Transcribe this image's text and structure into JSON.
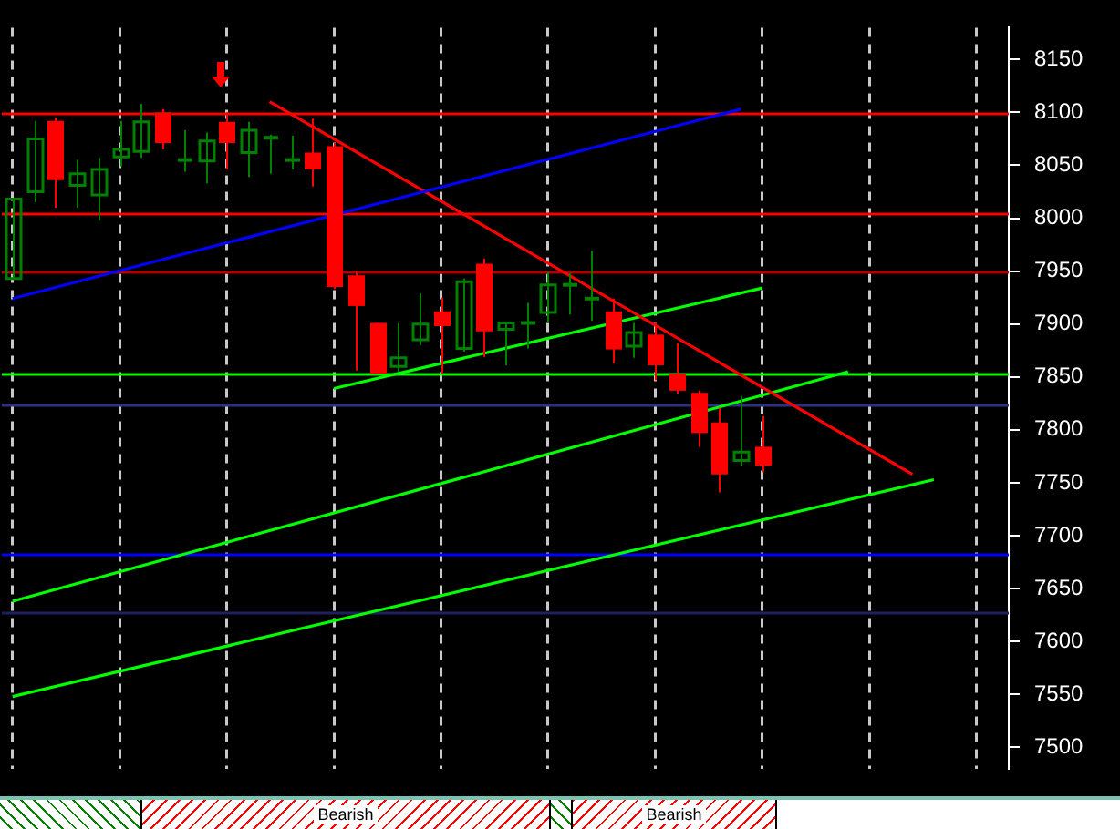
{
  "chart_data": {
    "type": "candlestick",
    "categories": [
      null,
      null,
      null,
      null,
      null,
      null,
      null,
      null,
      null,
      null,
      null,
      null,
      null,
      null,
      null,
      null,
      null,
      null,
      null,
      null,
      null,
      null,
      null,
      null,
      null,
      null,
      null,
      null,
      null,
      null,
      null,
      null,
      null,
      null,
      null,
      null,
      null,
      null,
      null,
      null,
      null,
      null,
      null,
      null,
      null,
      null,
      null
    ],
    "ohlc": [
      [
        7943,
        8018,
        7943,
        8018
      ],
      [
        8025,
        8092,
        8015,
        8075
      ],
      [
        8092,
        8095,
        8010,
        8036
      ],
      [
        8031,
        8055,
        8010,
        8042
      ],
      [
        8022,
        8057,
        7998,
        8046
      ],
      [
        8058,
        8092,
        8049,
        8065
      ],
      [
        8063,
        8108,
        8057,
        8091
      ],
      [
        8100,
        8103,
        8065,
        8071
      ],
      [
        8055,
        8083,
        8044,
        8055
      ],
      [
        8054,
        8081,
        8033,
        8073
      ],
      [
        8091,
        8100,
        8046,
        8071
      ],
      [
        8062,
        8091,
        8039,
        8083
      ],
      [
        8076,
        8079,
        8042,
        8076
      ],
      [
        8055,
        8078,
        8046,
        8055
      ],
      [
        8062,
        8094,
        8030,
        8046
      ],
      [
        8068,
        8071,
        7933,
        7935
      ],
      [
        7946,
        7949,
        7856,
        7917
      ],
      [
        7901,
        7901,
        7853,
        7853
      ],
      [
        7860,
        7901,
        7855,
        7868
      ],
      [
        7885,
        7929,
        7880,
        7900
      ],
      [
        7912,
        7925,
        7853,
        7898
      ],
      [
        7877,
        7943,
        7874,
        7940
      ],
      [
        7957,
        7962,
        7869,
        7893
      ],
      [
        7895,
        7901,
        7861,
        7901
      ],
      [
        7901,
        7920,
        7877,
        7901
      ],
      [
        7911,
        7949,
        7901,
        7937
      ],
      [
        7937,
        7948,
        7909,
        7937
      ],
      [
        7924,
        7969,
        7903,
        7924
      ],
      [
        7912,
        7924,
        7863,
        7876
      ],
      [
        7879,
        7901,
        7868,
        7892
      ],
      [
        7890,
        7901,
        7847,
        7861
      ],
      [
        7853,
        7882,
        7834,
        7837
      ],
      [
        7835,
        7837,
        7784,
        7797
      ],
      [
        7807,
        7821,
        7741,
        7758
      ],
      [
        7771,
        7832,
        7766,
        7779
      ],
      [
        7784,
        7813,
        7760,
        7766
      ],
      null,
      null,
      null,
      null,
      null,
      null,
      null,
      null,
      null,
      null,
      null
    ],
    "series": [
      {
        "type": "line",
        "values": [
          7924,
          null,
          null,
          null,
          null,
          null,
          null,
          null,
          null,
          null,
          null,
          null,
          null,
          null,
          null,
          null,
          null,
          null,
          null,
          null,
          null,
          null,
          null,
          null,
          null,
          null,
          null,
          null,
          null,
          null,
          null,
          null,
          null,
          null,
          8103,
          null,
          null,
          null,
          null,
          null,
          null,
          null,
          null,
          null,
          null,
          null,
          null
        ],
        "color": "#0000ff"
      },
      {
        "type": "line",
        "values": [
          null,
          null,
          null,
          null,
          null,
          null,
          null,
          null,
          null,
          null,
          null,
          null,
          8110,
          null,
          null,
          null,
          null,
          null,
          null,
          null,
          null,
          null,
          null,
          null,
          null,
          null,
          null,
          null,
          null,
          null,
          null,
          null,
          null,
          null,
          null,
          null,
          null,
          null,
          null,
          null,
          null,
          null,
          7758,
          null,
          null,
          null,
          null
        ],
        "color": "#ff0000"
      },
      {
        "type": "line",
        "values": [
          null,
          null,
          null,
          null,
          null,
          null,
          null,
          null,
          null,
          null,
          null,
          null,
          null,
          null,
          null,
          7839,
          null,
          null,
          null,
          null,
          null,
          null,
          null,
          null,
          null,
          null,
          null,
          null,
          null,
          null,
          null,
          null,
          null,
          null,
          null,
          7934,
          null,
          null,
          null,
          null,
          null,
          null,
          null,
          null,
          null,
          null,
          null
        ],
        "color": "#00ff00"
      },
      {
        "type": "line",
        "values": [
          7638,
          null,
          null,
          null,
          null,
          null,
          null,
          null,
          null,
          null,
          null,
          null,
          null,
          null,
          null,
          null,
          null,
          null,
          null,
          null,
          null,
          null,
          null,
          null,
          null,
          null,
          null,
          null,
          null,
          null,
          null,
          null,
          null,
          null,
          null,
          null,
          null,
          null,
          null,
          7855,
          null,
          null,
          null,
          null,
          null,
          null,
          null
        ],
        "color": "#00ff00"
      },
      {
        "type": "line",
        "values": [
          7548,
          null,
          null,
          null,
          null,
          null,
          null,
          null,
          null,
          null,
          null,
          null,
          null,
          null,
          null,
          null,
          null,
          null,
          null,
          null,
          null,
          null,
          null,
          null,
          null,
          null,
          null,
          null,
          null,
          null,
          null,
          null,
          null,
          null,
          null,
          null,
          null,
          null,
          null,
          null,
          null,
          null,
          null,
          7753,
          null,
          null,
          null
        ],
        "color": "#00ff00"
      }
    ],
    "ref_lines": [
      {
        "axis": "y",
        "value": 8100,
        "color": "#ff0000"
      },
      {
        "axis": "y",
        "value": 8005,
        "color": "#ff0000"
      },
      {
        "axis": "y",
        "value": 7950,
        "color": "#b00000"
      },
      {
        "axis": "y",
        "value": 7853,
        "color": "#00ff00"
      },
      {
        "axis": "y",
        "value": 7824,
        "color": "#303080"
      },
      {
        "axis": "y",
        "value": 7683,
        "color": "#0000ff"
      },
      {
        "axis": "y",
        "value": 7628,
        "color": "#202060"
      }
    ],
    "ylim": [
      7480,
      8180
    ],
    "yticks": [
      7500,
      7550,
      7600,
      7650,
      7700,
      7750,
      7800,
      7850,
      7900,
      7950,
      8000,
      8050,
      8100,
      8150
    ],
    "grid": "x",
    "legend": false,
    "annotations": [
      "Bearish",
      "Bearish"
    ]
  }
}
